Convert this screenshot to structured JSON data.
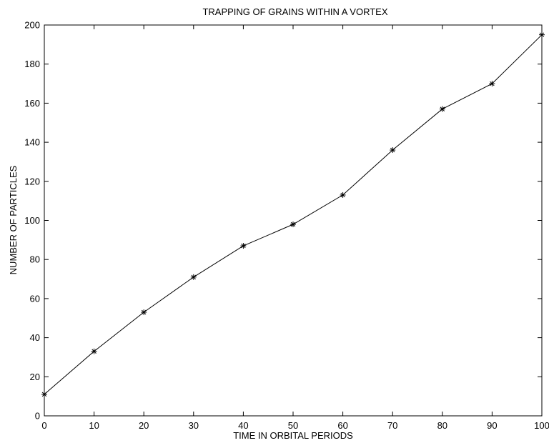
{
  "chart_data": {
    "type": "line",
    "title": "TRAPPING OF GRAINS WITHIN A VORTEX",
    "xlabel": "TIME IN ORBITAL PERIODS",
    "ylabel": "NUMBER OF PARTICLES",
    "xlim": [
      0,
      100
    ],
    "ylim": [
      0,
      200
    ],
    "xticks": [
      0,
      10,
      20,
      30,
      40,
      50,
      60,
      70,
      80,
      90,
      100
    ],
    "yticks": [
      0,
      20,
      40,
      60,
      80,
      100,
      120,
      140,
      160,
      180,
      200
    ],
    "grid": false,
    "marker": "asterisk",
    "line_color": "#000000",
    "series": [
      {
        "x": [
          0,
          10,
          20,
          30,
          40,
          50,
          60,
          70,
          80,
          90,
          100
        ],
        "values": [
          11,
          33,
          53,
          71,
          87,
          98,
          113,
          136,
          157,
          170,
          195
        ]
      }
    ]
  }
}
